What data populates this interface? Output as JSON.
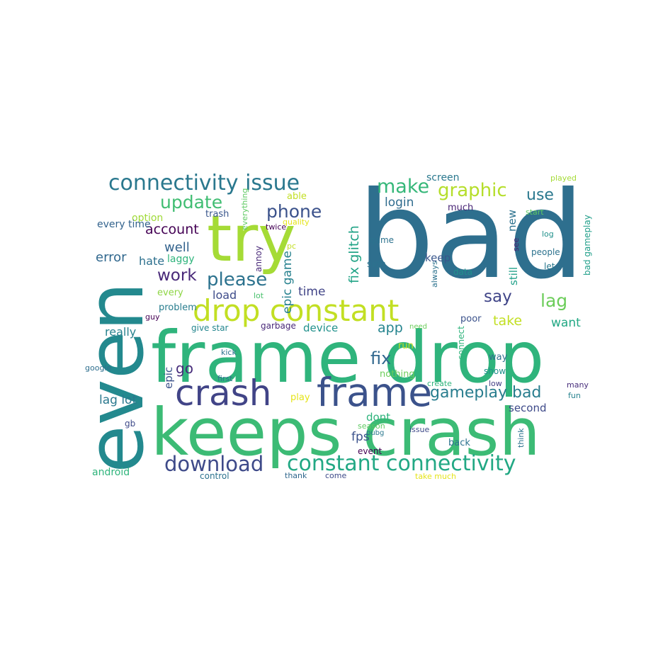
{
  "title": "",
  "palette": {
    "teal_dark": "#2e6f8e",
    "teal": "#23898e",
    "green": "#2fb47c",
    "green_light": "#5ec962",
    "lime": "#a5db36",
    "yellow_lime": "#c2df23",
    "yellow": "#e5e419",
    "navy": "#3b528b",
    "indigo": "#433e85",
    "purple": "#440154",
    "blue": "#31688e",
    "cyan": "#1f9e89"
  },
  "words": [
    {
      "text": "bad",
      "weight": 1.0,
      "color": "#2e6f8e",
      "rotated": false
    },
    {
      "text": "even",
      "weight": 0.95,
      "color": "#23898e",
      "rotated": true
    },
    {
      "text": "frame drop",
      "weight": 0.8,
      "color": "#2fb47c",
      "rotated": false
    },
    {
      "text": "keeps crash",
      "weight": 0.78,
      "color": "#3cbb75",
      "rotated": false
    },
    {
      "text": "try",
      "weight": 0.7,
      "color": "#a5db36",
      "rotated": false
    },
    {
      "text": "frame",
      "weight": 0.45,
      "color": "#3b528b",
      "rotated": false
    },
    {
      "text": "crash",
      "weight": 0.42,
      "color": "#414487",
      "rotated": false
    },
    {
      "text": "drop constant",
      "weight": 0.38,
      "color": "#c2df23",
      "rotated": false
    },
    {
      "text": "connectivity issue",
      "weight": 0.3,
      "color": "#2a788e",
      "rotated": false
    },
    {
      "text": "constant connectivity",
      "weight": 0.3,
      "color": "#22a884",
      "rotated": false
    },
    {
      "text": "download",
      "weight": 0.26,
      "color": "#3e4a89",
      "rotated": false
    },
    {
      "text": "make",
      "weight": 0.25,
      "color": "#35b779",
      "rotated": false
    },
    {
      "text": "graphic",
      "weight": 0.24,
      "color": "#b5de2b",
      "rotated": false
    },
    {
      "text": "update",
      "weight": 0.24,
      "color": "#40bd72",
      "rotated": false
    },
    {
      "text": "phone",
      "weight": 0.23,
      "color": "#3b528b",
      "rotated": false
    },
    {
      "text": "please",
      "weight": 0.22,
      "color": "#2c728e",
      "rotated": false
    },
    {
      "text": "work",
      "weight": 0.21,
      "color": "#482878",
      "rotated": false
    },
    {
      "text": "gameplay bad",
      "weight": 0.21,
      "color": "#287d8e",
      "rotated": false
    },
    {
      "text": "fix",
      "weight": 0.21,
      "color": "#31688e",
      "rotated": false
    },
    {
      "text": "lag",
      "weight": 0.21,
      "color": "#6ccd5a",
      "rotated": false
    },
    {
      "text": "say",
      "weight": 0.2,
      "color": "#404588",
      "rotated": false
    },
    {
      "text": "use",
      "weight": 0.2,
      "color": "#2a788e",
      "rotated": false
    },
    {
      "text": "fix glitch",
      "weight": 0.19,
      "color": "#20a386",
      "rotated": true
    },
    {
      "text": "account",
      "weight": 0.18,
      "color": "#440154",
      "rotated": false
    },
    {
      "text": "well",
      "weight": 0.17,
      "color": "#33638d",
      "rotated": false
    },
    {
      "text": "error",
      "weight": 0.17,
      "color": "#31688e",
      "rotated": false
    },
    {
      "text": "go",
      "weight": 0.17,
      "color": "#472d7b",
      "rotated": false
    },
    {
      "text": "app",
      "weight": 0.17,
      "color": "#25848e",
      "rotated": false
    },
    {
      "text": "login",
      "weight": 0.16,
      "color": "#2f6c8e",
      "rotated": false
    },
    {
      "text": "take",
      "weight": 0.16,
      "color": "#c2df23",
      "rotated": false
    },
    {
      "text": "time",
      "weight": 0.16,
      "color": "#414487",
      "rotated": false
    },
    {
      "text": "epic game",
      "weight": 0.16,
      "color": "#26818e",
      "rotated": true
    },
    {
      "text": "lag lot",
      "weight": 0.16,
      "color": "#2a788e",
      "rotated": false
    },
    {
      "text": "fps",
      "weight": 0.16,
      "color": "#3b528b",
      "rotated": false
    },
    {
      "text": "want",
      "weight": 0.16,
      "color": "#22a884",
      "rotated": false
    },
    {
      "text": "really",
      "weight": 0.15,
      "color": "#26828e",
      "rotated": false
    },
    {
      "text": "hate",
      "weight": 0.15,
      "color": "#2d708e",
      "rotated": false
    },
    {
      "text": "load",
      "weight": 0.14,
      "color": "#3e4c8a",
      "rotated": false
    },
    {
      "text": "epic",
      "weight": 0.14,
      "color": "#3b528b",
      "rotated": true
    },
    {
      "text": "device",
      "weight": 0.14,
      "color": "#21918c",
      "rotated": false
    },
    {
      "text": "new",
      "weight": 0.14,
      "color": "#2c728e",
      "rotated": true
    },
    {
      "text": "still",
      "weight": 0.14,
      "color": "#1fa088",
      "rotated": true
    },
    {
      "text": "second",
      "weight": 0.14,
      "color": "#3e4a89",
      "rotated": false
    },
    {
      "text": "dont",
      "weight": 0.13,
      "color": "#2eb37c",
      "rotated": false
    },
    {
      "text": "keep",
      "weight": 0.13,
      "color": "#39568c",
      "rotated": false
    },
    {
      "text": "screen",
      "weight": 0.13,
      "color": "#2a788e",
      "rotated": false
    },
    {
      "text": "much",
      "weight": 0.13,
      "color": "#482475",
      "rotated": false
    },
    {
      "text": "laggy",
      "weight": 0.12,
      "color": "#2fb47c",
      "rotated": false
    },
    {
      "text": "option",
      "weight": 0.12,
      "color": "#a0da39",
      "rotated": false
    },
    {
      "text": "every time",
      "weight": 0.12,
      "color": "#33638d",
      "rotated": false
    },
    {
      "text": "every",
      "weight": 0.12,
      "color": "#8ed645",
      "rotated": false
    },
    {
      "text": "problem",
      "weight": 0.11,
      "color": "#287d8e",
      "rotated": false
    },
    {
      "text": "able",
      "weight": 0.11,
      "color": "#c2df23",
      "rotated": false
    },
    {
      "text": "trash",
      "weight": 0.11,
      "color": "#39568c",
      "rotated": false
    },
    {
      "text": "twice",
      "weight": 0.11,
      "color": "#440154",
      "rotated": false
    },
    {
      "text": "annoy",
      "weight": 0.1,
      "color": "#482878",
      "rotated": true
    },
    {
      "text": "everything",
      "weight": 0.11,
      "color": "#5ec962",
      "rotated": true
    },
    {
      "text": "pc",
      "weight": 0.09,
      "color": "#c2df23",
      "rotated": false
    },
    {
      "text": "quality",
      "weight": 0.09,
      "color": "#e5e419",
      "rotated": false
    },
    {
      "text": "lot",
      "weight": 0.09,
      "color": "#4ac16d",
      "rotated": false
    },
    {
      "text": "guy",
      "weight": 0.1,
      "color": "#440154",
      "rotated": false
    },
    {
      "text": "give star",
      "weight": 0.12,
      "color": "#24868e",
      "rotated": false
    },
    {
      "text": "garbage",
      "weight": 0.11,
      "color": "#482878",
      "rotated": false
    },
    {
      "text": "game",
      "weight": 0.11,
      "color": "#2c728e",
      "rotated": false
    },
    {
      "text": "sign",
      "weight": 0.12,
      "color": "#2c728e",
      "rotated": false
    },
    {
      "text": "always",
      "weight": 0.1,
      "color": "#2c728e",
      "rotated": true
    },
    {
      "text": "see",
      "weight": 0.1,
      "color": "#481f70",
      "rotated": true
    },
    {
      "text": "data",
      "weight": 0.1,
      "color": "#21918c",
      "rotated": false
    },
    {
      "text": "start",
      "weight": 0.1,
      "color": "#5ec962",
      "rotated": false
    },
    {
      "text": "played",
      "weight": 0.1,
      "color": "#a5db36",
      "rotated": false
    },
    {
      "text": "bad gameplay",
      "weight": 0.12,
      "color": "#1f9e89",
      "rotated": true
    },
    {
      "text": "log",
      "weight": 0.1,
      "color": "#21918c",
      "rotated": false
    },
    {
      "text": "people",
      "weight": 0.11,
      "color": "#2c728e",
      "rotated": false
    },
    {
      "text": "let",
      "weight": 0.11,
      "color": "#2a788e",
      "rotated": false
    },
    {
      "text": "poor",
      "weight": 0.12,
      "color": "#3b528b",
      "rotated": false
    },
    {
      "text": "need",
      "weight": 0.09,
      "color": "#6ccd5a",
      "rotated": false
    },
    {
      "text": "run",
      "weight": 0.12,
      "color": "#c2df23",
      "rotated": false
    },
    {
      "text": "connect",
      "weight": 0.11,
      "color": "#2fb47c",
      "rotated": true
    },
    {
      "text": "way",
      "weight": 0.11,
      "color": "#2e6f8e",
      "rotated": false
    },
    {
      "text": "nothing",
      "weight": 0.11,
      "color": "#6ccd5a",
      "rotated": false
    },
    {
      "text": "show",
      "weight": 0.1,
      "color": "#21918c",
      "rotated": false
    },
    {
      "text": "low",
      "weight": 0.09,
      "color": "#433e85",
      "rotated": false
    },
    {
      "text": "create",
      "weight": 0.1,
      "color": "#2fb47c",
      "rotated": false
    },
    {
      "text": "many",
      "weight": 0.1,
      "color": "#472d7b",
      "rotated": false
    },
    {
      "text": "fun",
      "weight": 0.1,
      "color": "#26828e",
      "rotated": false
    },
    {
      "text": "kick",
      "weight": 0.1,
      "color": "#2c728e",
      "rotated": false
    },
    {
      "text": "google",
      "weight": 0.09,
      "color": "#2e6f8e",
      "rotated": false
    },
    {
      "text": "first",
      "weight": 0.09,
      "color": "#2c728e",
      "rotated": false
    },
    {
      "text": "play",
      "weight": 0.1,
      "color": "#e5e419",
      "rotated": false
    },
    {
      "text": "gb",
      "weight": 0.1,
      "color": "#3e4a89",
      "rotated": false
    },
    {
      "text": "season",
      "weight": 0.09,
      "color": "#5ec962",
      "rotated": false
    },
    {
      "text": "pubg",
      "weight": 0.09,
      "color": "#2a788e",
      "rotated": false
    },
    {
      "text": "issue",
      "weight": 0.1,
      "color": "#3e4a89",
      "rotated": false
    },
    {
      "text": "event",
      "weight": 0.1,
      "color": "#440154",
      "rotated": false
    },
    {
      "text": "back",
      "weight": 0.12,
      "color": "#2c728e",
      "rotated": false
    },
    {
      "text": "think",
      "weight": 0.1,
      "color": "#2c728e",
      "rotated": true
    },
    {
      "text": "android",
      "weight": 0.12,
      "color": "#2fb47c",
      "rotated": false
    },
    {
      "text": "control",
      "weight": 0.09,
      "color": "#2c728e",
      "rotated": false
    },
    {
      "text": "thank",
      "weight": 0.09,
      "color": "#31688e",
      "rotated": false
    },
    {
      "text": "come",
      "weight": 0.09,
      "color": "#3e4a89",
      "rotated": false
    },
    {
      "text": "take much",
      "weight": 0.09,
      "color": "#e5e419",
      "rotated": false
    }
  ]
}
